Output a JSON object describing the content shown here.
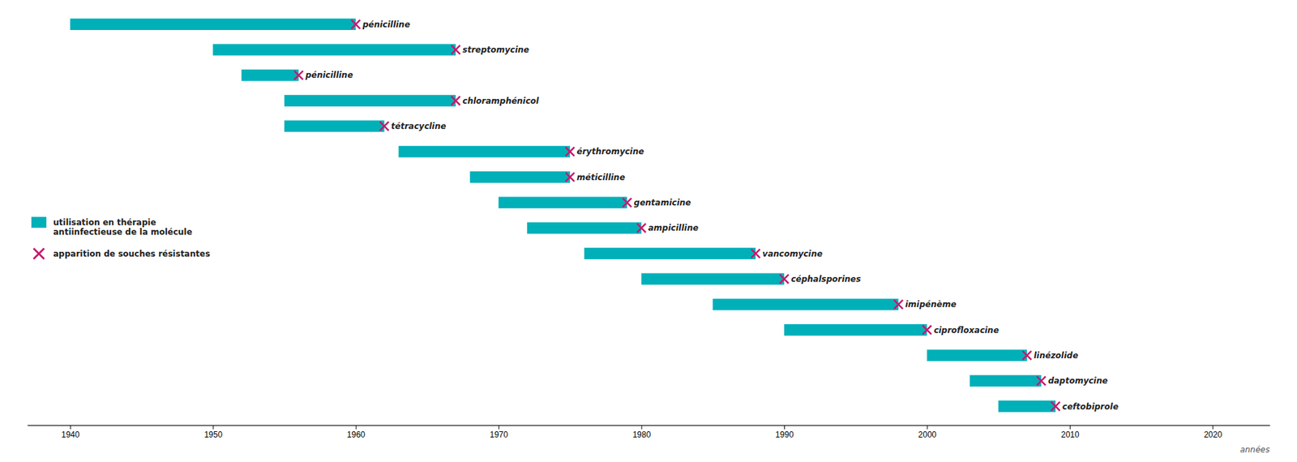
{
  "chart_data": {
    "type": "bar",
    "orientation": "horizontal",
    "categories": [
      "pénicilline",
      "streptomycine",
      "pénicilline",
      "chloramphénicol",
      "tétracycline",
      "érythromycine",
      "méticilline",
      "gentamicine",
      "ampicilline",
      "vancomycine",
      "céphalsporines",
      "imipénème",
      "ciprofloxacine",
      "linézolide",
      "daptomycine",
      "ceftobiprole"
    ],
    "series": [
      {
        "name": "utilisation en thérapie\nantiinfectieuse de la molécule",
        "type": "bar",
        "color": "#00b0b9",
        "start": [
          1940,
          1950,
          1952,
          1955,
          1955,
          1963,
          1968,
          1970,
          1972,
          1976,
          1980,
          1985,
          1990,
          2000,
          2003,
          2005
        ],
        "values": [
          1960,
          1967,
          1956,
          1967,
          1962,
          1975,
          1975,
          1979,
          1980,
          1988,
          1990,
          1998,
          2000,
          2007,
          2008,
          2009
        ]
      },
      {
        "name": "apparition de souches résistantes",
        "type": "scatter",
        "marker": "x",
        "color": "#c8186c",
        "values": [
          1960,
          1967,
          1956,
          1967,
          1962,
          1975,
          1975,
          1979,
          1980,
          1988,
          1990,
          1998,
          2000,
          2007,
          2008,
          2009
        ]
      }
    ],
    "x_label": "années",
    "xlim": [
      1937,
      2024
    ],
    "xticks": [
      1940,
      1950,
      1960,
      1970,
      1980,
      1990,
      2000,
      2010,
      2020
    ],
    "tick_labels": "x",
    "grid": false,
    "legend": "left"
  }
}
